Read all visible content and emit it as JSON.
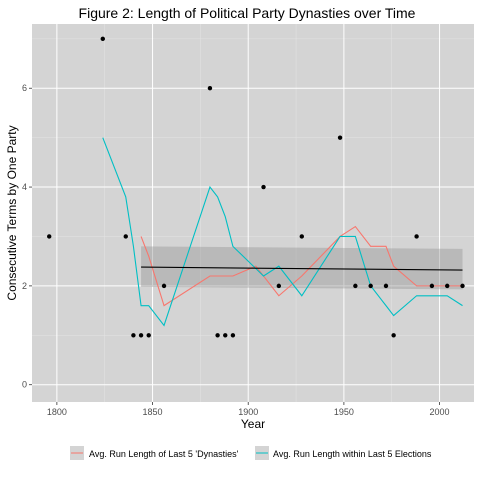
{
  "chart_data": {
    "type": "scatter",
    "title": "Figure 2: Length of Political Party Dynasties over Time",
    "xlabel": "Year",
    "ylabel": "Consecutive Terms by One Party",
    "xlim": [
      1787,
      2018
    ],
    "ylim": [
      -0.35,
      7.3
    ],
    "x_ticks": [
      1800,
      1850,
      1900,
      1950,
      2000
    ],
    "y_ticks": [
      0,
      2,
      4,
      6
    ],
    "grid": true,
    "legend_position": "bottom",
    "points": [
      {
        "x": 1796,
        "y": 3
      },
      {
        "x": 1824,
        "y": 7
      },
      {
        "x": 1836,
        "y": 3
      },
      {
        "x": 1840,
        "y": 1
      },
      {
        "x": 1844,
        "y": 1
      },
      {
        "x": 1848,
        "y": 1
      },
      {
        "x": 1856,
        "y": 2
      },
      {
        "x": 1880,
        "y": 6
      },
      {
        "x": 1884,
        "y": 1
      },
      {
        "x": 1888,
        "y": 1
      },
      {
        "x": 1892,
        "y": 1
      },
      {
        "x": 1908,
        "y": 4
      },
      {
        "x": 1916,
        "y": 2
      },
      {
        "x": 1928,
        "y": 3
      },
      {
        "x": 1948,
        "y": 5
      },
      {
        "x": 1956,
        "y": 2
      },
      {
        "x": 1964,
        "y": 2
      },
      {
        "x": 1972,
        "y": 2
      },
      {
        "x": 1976,
        "y": 1
      },
      {
        "x": 1988,
        "y": 3
      },
      {
        "x": 1996,
        "y": 2
      },
      {
        "x": 2004,
        "y": 2
      },
      {
        "x": 2012,
        "y": 2
      }
    ],
    "series": [
      {
        "name": "Avg. Run Length of Last 5 'Dynasties'",
        "color": "#f8766d",
        "x": [
          1844,
          1848,
          1856,
          1880,
          1892,
          1904,
          1916,
          1928,
          1948,
          1956,
          1964,
          1972,
          1976,
          1988,
          1996,
          2004,
          2012
        ],
        "y": [
          3.0,
          2.6,
          1.6,
          2.2,
          2.2,
          2.4,
          1.8,
          2.2,
          3.0,
          3.2,
          2.8,
          2.8,
          2.4,
          2.0,
          2.0,
          2.0,
          2.0
        ]
      },
      {
        "name": "Avg. Run Length within Last 5 Elections",
        "color": "#00bfc4",
        "x": [
          1824,
          1836,
          1840,
          1844,
          1848,
          1856,
          1880,
          1884,
          1888,
          1892,
          1908,
          1916,
          1928,
          1948,
          1956,
          1964,
          1972,
          1976,
          1988,
          1996,
          2004,
          2012
        ],
        "y": [
          5.0,
          3.8,
          2.8,
          1.6,
          1.6,
          1.2,
          4.0,
          3.8,
          3.4,
          2.8,
          2.2,
          2.4,
          1.8,
          3.0,
          3.0,
          2.0,
          1.6,
          1.4,
          1.8,
          1.8,
          1.8,
          1.6
        ]
      }
    ],
    "trend": {
      "color": "#000000",
      "x": [
        1844,
        2012
      ],
      "y": [
        2.38,
        2.32
      ],
      "band_upper": [
        2.8,
        2.75
      ],
      "band_lower": [
        1.98,
        1.93
      ]
    }
  }
}
